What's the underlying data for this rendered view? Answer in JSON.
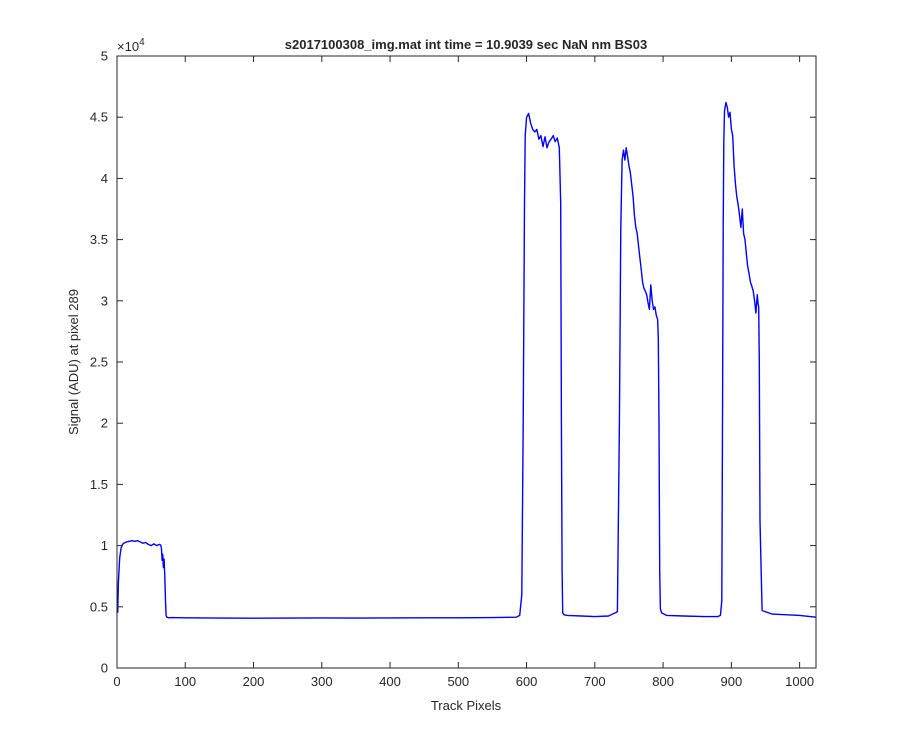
{
  "chart_data": {
    "type": "line",
    "title": "s2017100308_img.mat int time = 10.9039 sec  NaN nm BS03",
    "xlabel": "Track Pixels",
    "ylabel": "Signal (ADU) at pixel 289",
    "xlim": [
      0,
      1024
    ],
    "ylim": [
      0,
      50000
    ],
    "y_exponent_label": "×10",
    "y_exponent_power": "4",
    "xticks": [
      0,
      100,
      200,
      300,
      400,
      500,
      600,
      700,
      800,
      900,
      1000
    ],
    "xtick_labels": [
      "0",
      "100",
      "200",
      "300",
      "400",
      "500",
      "600",
      "700",
      "800",
      "900",
      "1000"
    ],
    "yticks": [
      0,
      5000,
      10000,
      15000,
      20000,
      25000,
      30000,
      35000,
      40000,
      45000,
      50000
    ],
    "ytick_labels": [
      "0",
      "0.5",
      "1",
      "1.5",
      "2",
      "2.5",
      "3",
      "3.5",
      "4",
      "4.5",
      "5"
    ],
    "grid": false,
    "line_color": "#0000ff",
    "series": [
      {
        "x": [
          1,
          2,
          4,
          6,
          8,
          10,
          14,
          18,
          22,
          26,
          30,
          34,
          38,
          42,
          46,
          50,
          54,
          58,
          62,
          64,
          65,
          66,
          67,
          68,
          69,
          70,
          71,
          72,
          73,
          76,
          80,
          100,
          150,
          200,
          250,
          300,
          350,
          400,
          450,
          500,
          550,
          585,
          590,
          593,
          595,
          597,
          598,
          600,
          603,
          606,
          609,
          612,
          615,
          618,
          621,
          624,
          627,
          630,
          633,
          636,
          639,
          642,
          645,
          648,
          650,
          651,
          652,
          653,
          655,
          660,
          680,
          700,
          720,
          733,
          736,
          738,
          740,
          742,
          744,
          746,
          748,
          750,
          752,
          754,
          756,
          758,
          760,
          762,
          764,
          766,
          768,
          770,
          772,
          774,
          776,
          778,
          780,
          782,
          784,
          786,
          788,
          790,
          792,
          793,
          794,
          795,
          796,
          798,
          805,
          830,
          860,
          880,
          884,
          886,
          887,
          888,
          889,
          890,
          892,
          894,
          896,
          898,
          900,
          902,
          904,
          906,
          908,
          910,
          912,
          914,
          916,
          918,
          920,
          922,
          924,
          926,
          928,
          930,
          932,
          934,
          936,
          938,
          939,
          940,
          941,
          942,
          945,
          960,
          1000,
          1024
        ],
        "y": [
          4500,
          7000,
          9000,
          9800,
          10100,
          10200,
          10300,
          10350,
          10400,
          10350,
          10400,
          10300,
          10200,
          10250,
          10100,
          10000,
          10150,
          10000,
          10100,
          10050,
          9800,
          8800,
          9300,
          8200,
          8900,
          7500,
          5500,
          4300,
          4150,
          4100,
          4120,
          4100,
          4080,
          4070,
          4080,
          4090,
          4080,
          4090,
          4100,
          4100,
          4120,
          4150,
          4300,
          6000,
          20000,
          38000,
          43500,
          45000,
          45300,
          44500,
          44000,
          43800,
          44000,
          43200,
          43500,
          42600,
          43400,
          42500,
          43000,
          43200,
          43500,
          43000,
          43300,
          42500,
          38000,
          20000,
          8000,
          4500,
          4350,
          4300,
          4250,
          4200,
          4250,
          4600,
          20000,
          36000,
          41500,
          42300,
          41500,
          42500,
          41800,
          41000,
          40500,
          39500,
          38500,
          37000,
          36000,
          35500,
          34500,
          33500,
          32500,
          31500,
          31000,
          30800,
          30500,
          29800,
          29300,
          31300,
          30000,
          29300,
          29500,
          28800,
          28500,
          27000,
          20000,
          8000,
          4800,
          4500,
          4300,
          4250,
          4200,
          4200,
          4300,
          5500,
          20000,
          36000,
          43000,
          45500,
          46200,
          45800,
          45000,
          45400,
          44000,
          43500,
          41000,
          39500,
          38500,
          37800,
          37000,
          36000,
          37500,
          35500,
          35000,
          33800,
          32800,
          32200,
          31500,
          31200,
          30800,
          30000,
          29000,
          30500,
          29800,
          29500,
          25000,
          12000,
          4700,
          4400,
          4300,
          4150
        ]
      }
    ]
  }
}
